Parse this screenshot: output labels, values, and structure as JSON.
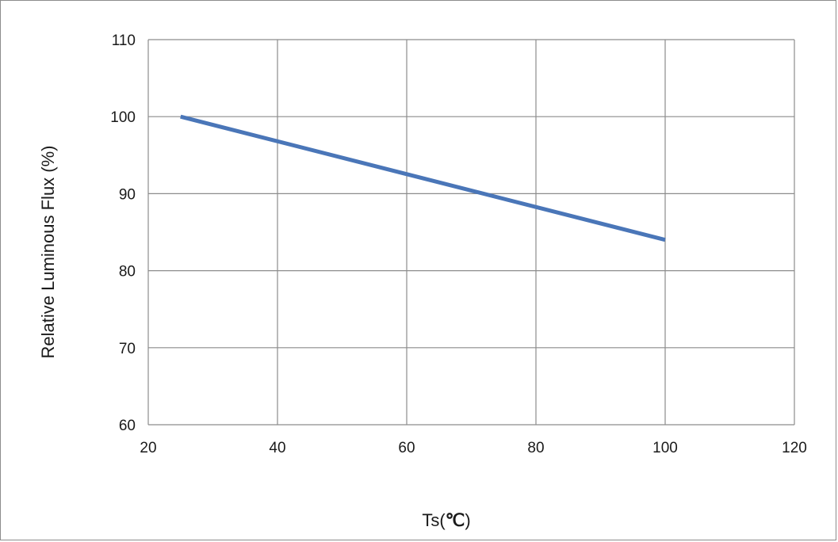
{
  "chart_data": {
    "type": "line",
    "xlabel": "Ts(",
    "xlabel_unit": "℃",
    "xlabel_close": ")",
    "ylabel": "Relative Luminous Flux (%)",
    "xlim": [
      20,
      120
    ],
    "ylim": [
      60,
      110
    ],
    "xticks": [
      20,
      40,
      60,
      80,
      100,
      120
    ],
    "yticks": [
      60,
      70,
      80,
      90,
      100,
      110
    ],
    "grid": true,
    "series": [
      {
        "color": "#4a76b8",
        "x": [
          25,
          100
        ],
        "y": [
          100,
          84
        ]
      }
    ]
  }
}
